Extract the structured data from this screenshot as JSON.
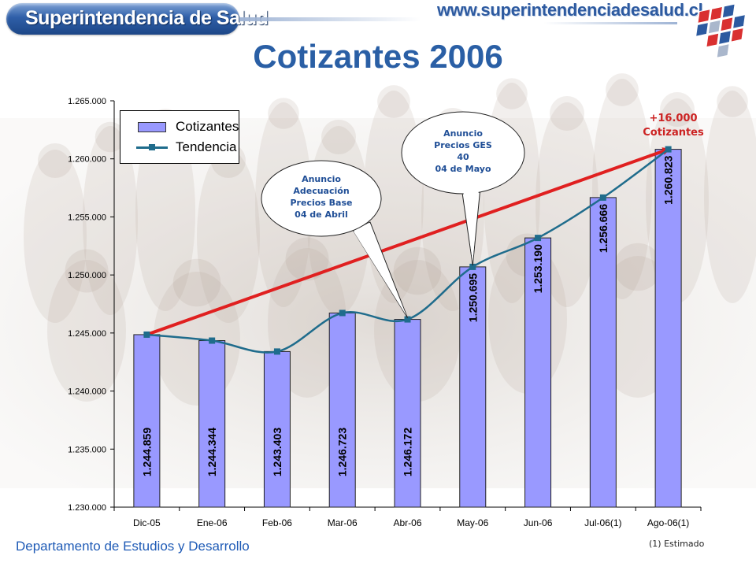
{
  "header": {
    "brand": "Superintendencia de Salud",
    "website": "www.superintendenciadesalud.cl"
  },
  "title": "Cotizantes 2006",
  "chart_data": {
    "type": "bar",
    "categories": [
      "Dic-05",
      "Ene-06",
      "Feb-06",
      "Mar-06",
      "Abr-06",
      "May-06",
      "Jun-06",
      "Jul-06(1)",
      "Ago-06(1)"
    ],
    "series": [
      {
        "name": "Cotizantes",
        "type": "bar",
        "values": [
          1244859,
          1244344,
          1243403,
          1246723,
          1246172,
          1250695,
          1253190,
          1256666,
          1260823
        ],
        "data_labels": [
          "1.244.859",
          "1.244.344",
          "1.243.403",
          "1.246.723",
          "1.246.172",
          "1.250.695",
          "1.253.190",
          "1.256.666",
          "1.260.823"
        ]
      },
      {
        "name": "Tendencia",
        "type": "line",
        "values": [
          1244859,
          1244344,
          1243403,
          1246723,
          1246172,
          1250695,
          1253190,
          1256666,
          1260823
        ]
      }
    ],
    "ylim": [
      1230000,
      1265000
    ],
    "yticks": [
      1230000,
      1235000,
      1240000,
      1245000,
      1250000,
      1255000,
      1260000,
      1265000
    ],
    "ytick_labels": [
      "1.230.000",
      "1.235.000",
      "1.240.000",
      "1.245.000",
      "1.250.000",
      "1.255.000",
      "1.260.000",
      "1.265.000"
    ],
    "legend_position": "top-left",
    "grid": false,
    "colors": {
      "bar": "#9999ff",
      "trend_line": "#1f6c8c",
      "arrow": "#e02020"
    },
    "annotations": [
      {
        "text": "Anuncio\nAdecuación\nPrecios Base\n04 de Abril",
        "target_category": "Abr-06"
      },
      {
        "text": "Anuncio\nPrecios GES\n40\n04 de Mayo",
        "target_category": "May-06"
      },
      {
        "text": "+16.000\nCotizantes",
        "from_category": "Dic-05",
        "to_category": "Ago-06(1)"
      }
    ]
  },
  "footer": {
    "department": "Departamento de Estudios y Desarrollo",
    "note": "(1) Estimado"
  }
}
